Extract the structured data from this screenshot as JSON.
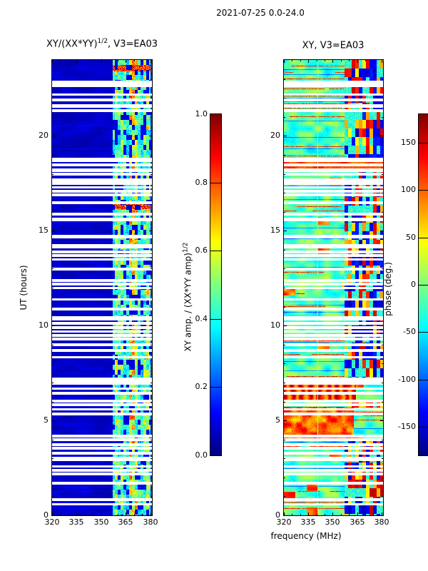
{
  "figure": {
    "title": "2021-07-25 0.0-24.0"
  },
  "chart_data": [
    {
      "type": "heatmap",
      "title": "XY/(XX*YY)^1/2, V3=EA03",
      "title_prefix": "XY/(XX*YY)",
      "title_sup": "1/2",
      "title_suffix": ", V3=EA03",
      "xlabel": "frequency (MHz)",
      "ylabel": "UT (hours)",
      "xlim": [
        320,
        381
      ],
      "ylim": [
        0,
        24
      ],
      "xticks": [
        320,
        335,
        350,
        365,
        380
      ],
      "yticks": [
        0,
        5,
        10,
        15,
        20
      ],
      "x_minor_step": 5,
      "y_minor_step": 1,
      "colormap": "jet",
      "value_label": "XY amp. / (XX*YY amp)^1/2",
      "value_label_prefix": "XY amp. / (XX*YY amp)",
      "value_label_sup": "1/2",
      "value_range": [
        0.0,
        1.0
      ],
      "colorbar_ticks": [
        "0.0",
        "0.2",
        "0.4",
        "0.6",
        "0.8",
        "1.0"
      ],
      "features": {
        "background_amp_range": [
          0.02,
          0.12
        ],
        "active_band_mhz": [
          357,
          381
        ],
        "band_amp_range": [
          0.2,
          0.9
        ],
        "hot_bands_ut": [
          [
            16.15,
            16.55
          ],
          [
            23.4,
            23.75
          ]
        ],
        "description": "Dark blue low cross-amplitude background with a bright blocky RFI band at 357-381 MHz (cyan/green/yellow cells, occasional red), interrupted by many white missing-scan gaps"
      }
    },
    {
      "type": "heatmap",
      "title": "XY, V3=EA03",
      "title_prefix": "XY, V3=EA03",
      "title_sup": "",
      "title_suffix": "",
      "xlabel": "frequency (MHz)",
      "ylabel": "UT (hours)",
      "xlim": [
        320,
        381
      ],
      "ylim": [
        0,
        24
      ],
      "xticks": [
        320,
        335,
        350,
        365,
        380
      ],
      "yticks": [
        0,
        5,
        10,
        15,
        20
      ],
      "x_minor_step": 5,
      "y_minor_step": 1,
      "colormap": "jet",
      "value_label": "phase (deg.)",
      "value_range": [
        -180,
        180
      ],
      "colorbar_ticks": [
        "-150",
        "-100",
        "-50",
        "0",
        "50",
        "100",
        "150"
      ],
      "features": {
        "background_deg_range": [
          -70,
          40
        ],
        "active_band_mhz": [
          357,
          381
        ],
        "orange_bands_ut": [
          [
            6.1,
            6.9
          ],
          [
            4.0,
            5.7
          ],
          [
            18.1,
            18.7
          ]
        ],
        "vertical_line_mhz": 340.5,
        "description": "Noisy cyan/blue cross-phase with horizontal orange streaks, broad orange/red bands near UT 4-7 and UT 18.5, and phase-wrapped red/dark-blue blocky cells in the 357-381 MHz RFI band"
      }
    }
  ],
  "gaps_ut": [
    [
      22.75,
      0.32
    ],
    [
      22.2,
      0.1
    ],
    [
      21.9,
      0.1
    ],
    [
      21.6,
      0.14
    ],
    [
      21.35,
      0.1
    ],
    [
      18.75,
      0.16
    ],
    [
      18.5,
      0.1
    ],
    [
      18.2,
      0.14
    ],
    [
      18.0,
      0.1
    ],
    [
      17.6,
      0.32
    ],
    [
      17.3,
      0.1
    ],
    [
      17.1,
      0.1
    ],
    [
      16.9,
      0.1
    ],
    [
      16.5,
      0.1
    ],
    [
      15.9,
      0.1
    ],
    [
      15.6,
      0.14
    ],
    [
      14.7,
      0.14
    ],
    [
      14.2,
      0.2
    ],
    [
      13.9,
      0.1
    ],
    [
      13.7,
      0.1
    ],
    [
      13.5,
      0.1
    ],
    [
      13.0,
      0.1
    ],
    [
      12.4,
      0.1
    ],
    [
      12.2,
      0.1
    ],
    [
      12.0,
      0.1
    ],
    [
      11.4,
      0.1
    ],
    [
      10.9,
      0.1
    ],
    [
      10.4,
      0.2
    ],
    [
      10.15,
      0.1
    ],
    [
      9.9,
      0.1
    ],
    [
      9.7,
      0.1
    ],
    [
      9.5,
      0.1
    ],
    [
      9.3,
      0.1
    ],
    [
      9.0,
      0.1
    ],
    [
      8.7,
      0.1
    ],
    [
      8.35,
      0.1
    ],
    [
      7.1,
      0.32
    ],
    [
      6.7,
      0.1
    ],
    [
      6.45,
      0.1
    ],
    [
      6.05,
      0.1
    ],
    [
      5.85,
      0.1
    ],
    [
      5.6,
      0.1
    ],
    [
      5.35,
      0.1
    ],
    [
      4.2,
      0.1
    ],
    [
      4.0,
      0.1
    ],
    [
      3.75,
      0.1
    ],
    [
      3.55,
      0.1
    ],
    [
      3.3,
      0.1
    ],
    [
      3.0,
      0.2
    ],
    [
      2.6,
      0.1
    ],
    [
      2.4,
      0.1
    ],
    [
      2.2,
      0.1
    ],
    [
      1.7,
      0.1
    ],
    [
      0.85,
      0.1
    ],
    [
      0.6,
      0.1
    ]
  ],
  "colors": {
    "background": "#ffffff",
    "axes": "#000000",
    "gap": "#ffffff",
    "colormap_low": "#00008f",
    "colormap_high": "#7f0000"
  }
}
